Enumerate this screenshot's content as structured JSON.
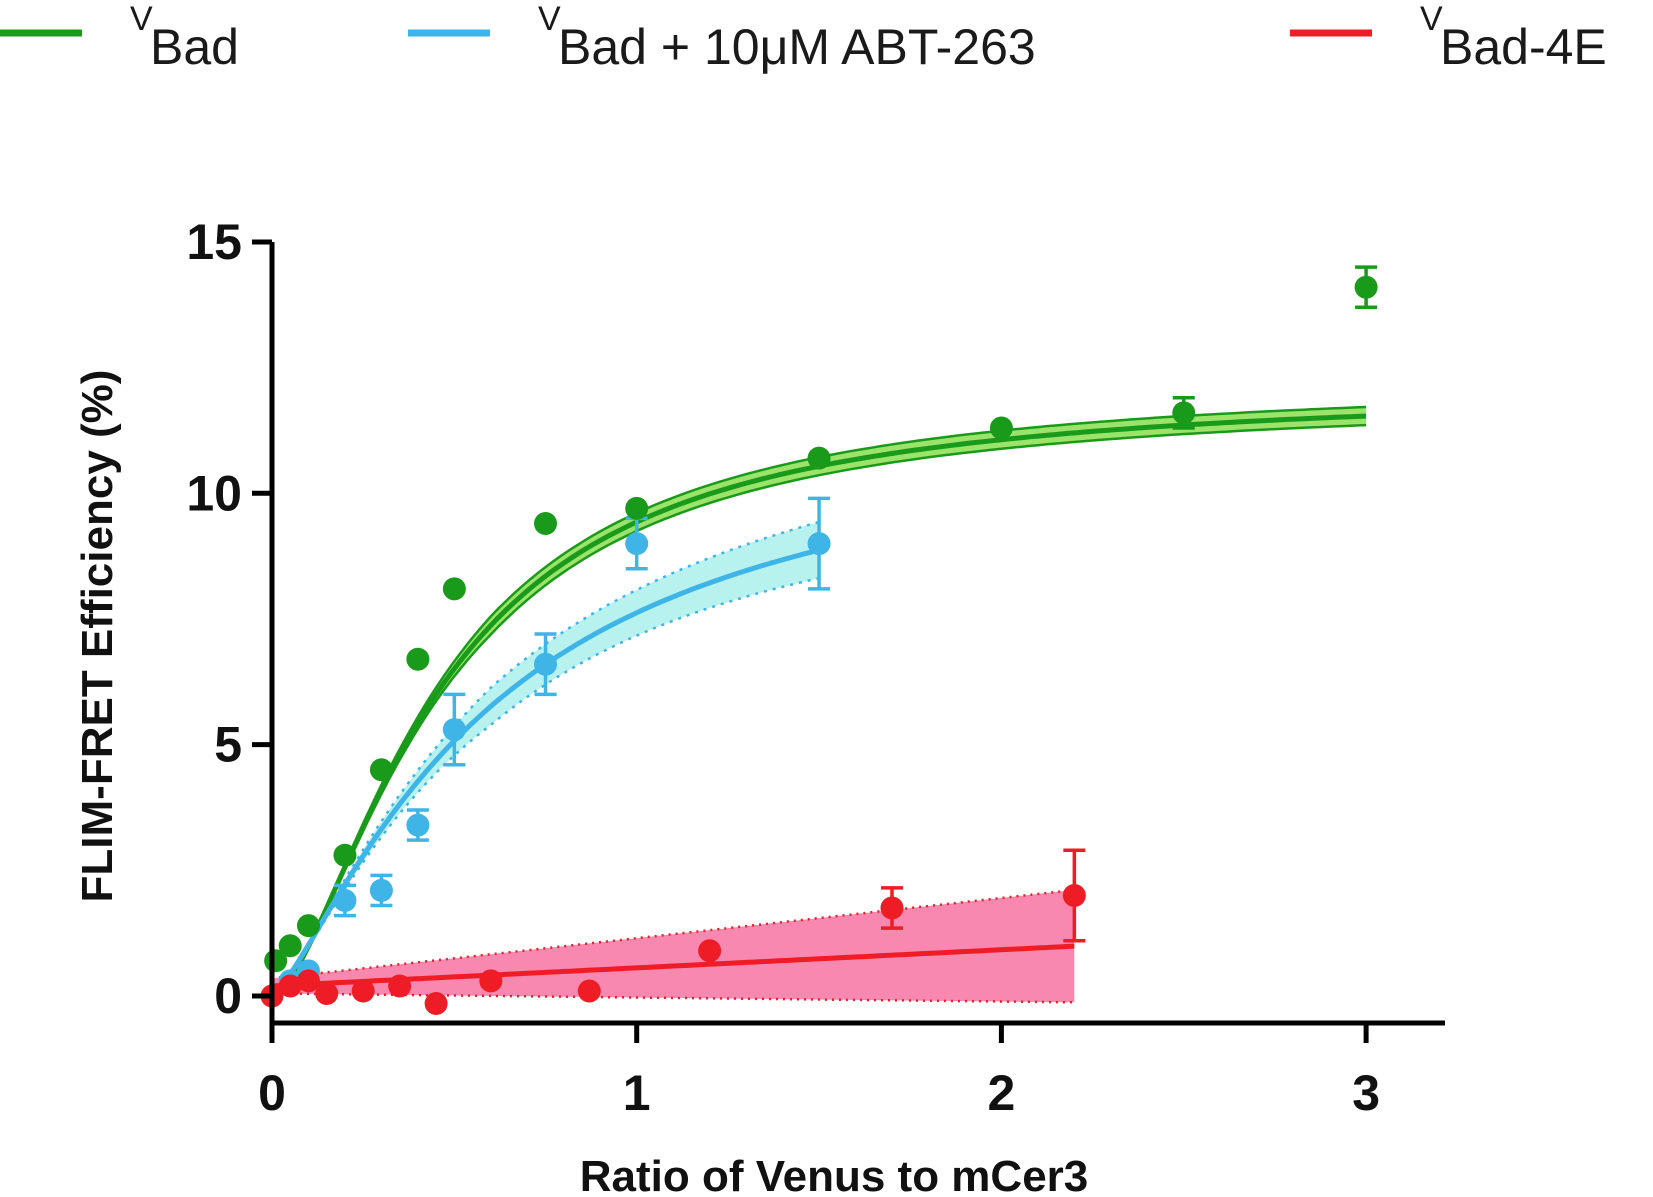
{
  "chart_data": {
    "type": "scatter",
    "xlabel": "Ratio of  Venus to mCer3",
    "ylabel": "FLIM-FRET  Efficiency (%)",
    "xlim": [
      0,
      3.2
    ],
    "ylim": [
      -0.5,
      15
    ],
    "xticks": [
      "0",
      "1",
      "2",
      "3"
    ],
    "yticks": [
      "0",
      "5",
      "10",
      "15"
    ],
    "grid": false,
    "legend_position": "top",
    "series": [
      {
        "name_sup": "V",
        "name": "Bad",
        "color": "#1a9a1a",
        "band_color": "#9be36b",
        "points": [
          [
            0.01,
            0.7
          ],
          [
            0.05,
            1.0
          ],
          [
            0.1,
            1.4
          ],
          [
            0.2,
            2.8
          ],
          [
            0.3,
            4.5
          ],
          [
            0.4,
            6.7
          ],
          [
            0.5,
            8.1
          ],
          [
            0.75,
            9.4
          ],
          [
            1.0,
            9.7
          ],
          [
            1.5,
            10.7
          ],
          [
            2.0,
            11.3
          ],
          [
            2.5,
            11.6
          ],
          [
            3.0,
            14.1
          ]
        ],
        "error": [
          0,
          0,
          0,
          0,
          0,
          0,
          0,
          0,
          0,
          0,
          0,
          0.3,
          0.4
        ],
        "fit": {
          "model": "sigmoidal",
          "max": 12.1,
          "k": 2.2,
          "n": 1.6,
          "x_end": 3.0
        }
      },
      {
        "name_sup": "V",
        "name": "Bad + 10μM ABT-263",
        "color": "#3fb4e6",
        "band_color": "#b8f2ee",
        "points": [
          [
            0.05,
            0.3
          ],
          [
            0.1,
            0.5
          ],
          [
            0.2,
            1.9
          ],
          [
            0.3,
            2.1
          ],
          [
            0.4,
            3.4
          ],
          [
            0.5,
            5.3
          ],
          [
            0.75,
            6.6
          ],
          [
            1.0,
            9.0
          ],
          [
            1.5,
            9.0
          ]
        ],
        "error": [
          0,
          0,
          0.3,
          0.3,
          0.3,
          0.7,
          0.6,
          0.5,
          0.9
        ],
        "fit": {
          "model": "sigmoidal",
          "max": 11.6,
          "k": 1.65,
          "n": 1.3,
          "x_end": 1.5
        }
      },
      {
        "name_sup": "V",
        "name": "Bad-4E",
        "color": "#ee1c25",
        "band_color": "#f988b0",
        "points": [
          [
            0.0,
            0.0
          ],
          [
            0.05,
            0.2
          ],
          [
            0.1,
            0.3
          ],
          [
            0.15,
            0.05
          ],
          [
            0.25,
            0.1
          ],
          [
            0.35,
            0.2
          ],
          [
            0.45,
            -0.15
          ],
          [
            0.6,
            0.3
          ],
          [
            0.87,
            0.1
          ],
          [
            1.2,
            0.9
          ],
          [
            1.7,
            1.75
          ],
          [
            2.2,
            2.0
          ]
        ],
        "error": [
          0,
          0,
          0,
          0,
          0,
          0,
          0,
          0,
          0,
          0,
          0.4,
          0.9
        ],
        "fit": {
          "model": "linear",
          "intercept": 0.2,
          "slope": 0.36,
          "x_end": 2.2
        }
      }
    ]
  }
}
